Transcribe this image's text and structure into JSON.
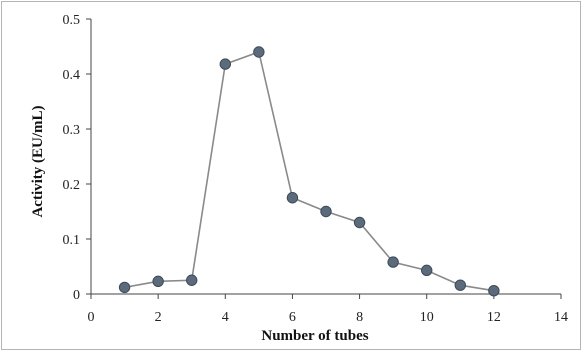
{
  "chart_data": {
    "type": "line",
    "title": "",
    "xlabel": "Number of tubes",
    "ylabel": "Activity (EU/mL)",
    "xlim": [
      0,
      14
    ],
    "ylim": [
      0,
      0.5
    ],
    "xticks": [
      0,
      2,
      4,
      6,
      8,
      10,
      12,
      14
    ],
    "yticks": [
      0,
      0.1,
      0.2,
      0.3,
      0.4,
      0.5
    ],
    "xtick_labels": [
      "0",
      "2",
      "4",
      "6",
      "8",
      "10",
      "12",
      "14"
    ],
    "ytick_labels": [
      "0",
      "0.1",
      "0.2",
      "0.3",
      "0.4",
      "0.5"
    ],
    "grid": false,
    "legend": "none",
    "series": [
      {
        "x": [
          1,
          2,
          3,
          4,
          5,
          6,
          7,
          8,
          9,
          10,
          11,
          12
        ],
        "y": [
          0.012,
          0.023,
          0.025,
          0.418,
          0.44,
          0.175,
          0.15,
          0.13,
          0.058,
          0.043,
          0.016,
          0.006
        ]
      }
    ],
    "colors": {
      "line": "#8a8a8a",
      "marker_fill": "#5b6b7c",
      "marker_stroke": "#3d4a57",
      "axis": "#444444"
    }
  }
}
